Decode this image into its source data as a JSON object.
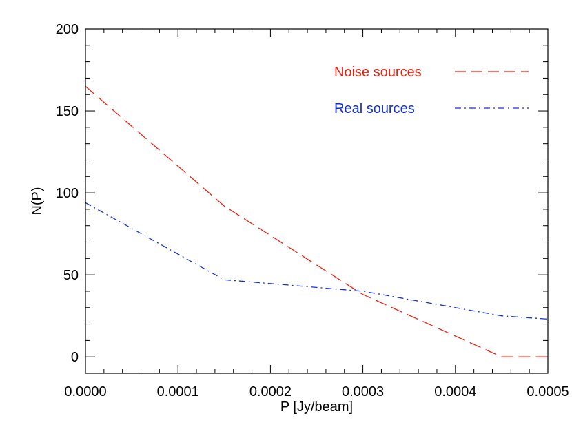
{
  "chart_data": {
    "type": "line",
    "title": "",
    "xlabel": "P [Jy/beam]",
    "ylabel": "N(P)",
    "xlim": [
      0,
      0.0005
    ],
    "ylim": [
      -10,
      200
    ],
    "xticks": [
      0,
      0.0001,
      0.0002,
      0.0003,
      0.0004,
      0.0005
    ],
    "xtick_labels": [
      "0.0000",
      "0.0001",
      "0.0002",
      "0.0003",
      "0.0004",
      "0.0005"
    ],
    "yticks": [
      0,
      50,
      100,
      150,
      200
    ],
    "ytick_labels": [
      "0",
      "50",
      "100",
      "150",
      "200"
    ],
    "grid": false,
    "legend_position": "top-right",
    "series": [
      {
        "name": "Noise sources",
        "color": "#e8210f",
        "line_style": "dashed",
        "x": [
          0,
          0.00015,
          0.0003,
          0.00045,
          0.0005
        ],
        "y": [
          165,
          92,
          38,
          0,
          0
        ]
      },
      {
        "name": "Real sources",
        "color": "#1531d6",
        "line_style": "dash-dot",
        "x": [
          0,
          0.00015,
          0.0003,
          0.00045,
          0.0005
        ],
        "y": [
          94,
          47,
          40,
          25,
          23
        ]
      }
    ]
  }
}
